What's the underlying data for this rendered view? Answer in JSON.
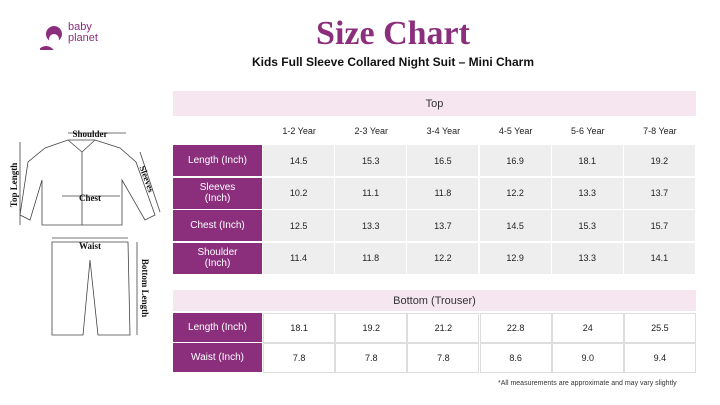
{
  "logo": {
    "line1": "baby",
    "line2": "planet"
  },
  "header": {
    "title": "Size Chart",
    "subtitle": "Kids Full Sleeve Collared Night Suit – Mini Charm"
  },
  "diagram": {
    "shoulder": "Shoulder",
    "top_length": "Top Length",
    "sleeves": "Sleeves",
    "chest": "Chest",
    "waist": "Waist",
    "bottom_length": "Bottom Length"
  },
  "top_table": {
    "title": "Top",
    "columns": [
      "1-2 Year",
      "2-3 Year",
      "3-4 Year",
      "4-5 Year",
      "5-6 Year",
      "7-8 Year"
    ],
    "rows": [
      {
        "label": "Length (Inch)",
        "values": [
          "14.5",
          "15.3",
          "16.5",
          "16.9",
          "18.1",
          "19.2"
        ]
      },
      {
        "label": "Sleeves (Inch)",
        "values": [
          "10.2",
          "11.1",
          "11.8",
          "12.2",
          "13.3",
          "13.7"
        ]
      },
      {
        "label": "Chest (Inch)",
        "values": [
          "12.5",
          "13.3",
          "13.7",
          "14.5",
          "15.3",
          "15.7"
        ]
      },
      {
        "label": "Shoulder (Inch)",
        "values": [
          "11.4",
          "11.8",
          "12.2",
          "12.9",
          "13.3",
          "14.1"
        ]
      }
    ]
  },
  "bottom_table": {
    "title": "Bottom (Trouser)",
    "rows": [
      {
        "label": "Length (Inch)",
        "values": [
          "18.1",
          "19.2",
          "21.2",
          "22.8",
          "24",
          "25.5"
        ]
      },
      {
        "label": "Waist (Inch)",
        "values": [
          "7.8",
          "7.8",
          "7.8",
          "8.6",
          "9.0",
          "9.4"
        ]
      }
    ]
  },
  "footnote": "*All measurements are approximate and may vary slightly"
}
